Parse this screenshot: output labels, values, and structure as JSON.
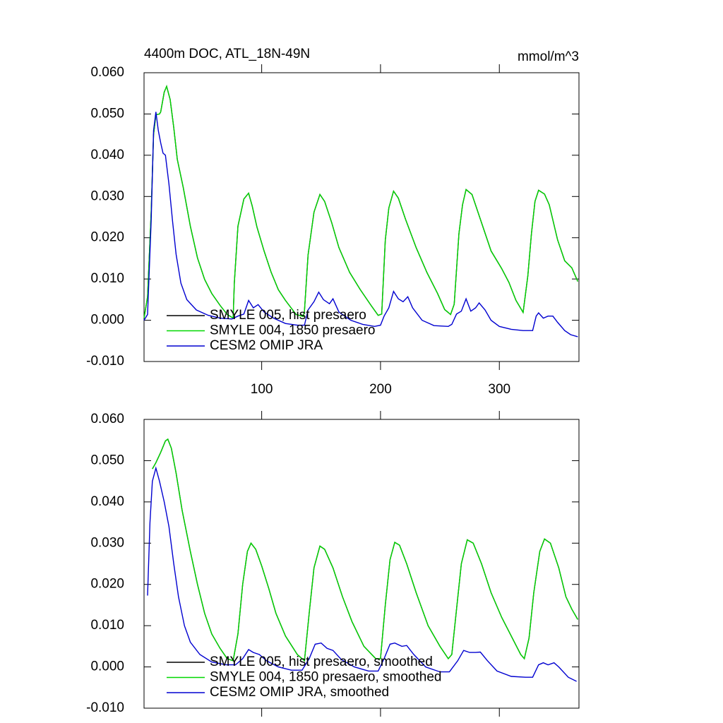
{
  "chart_data": [
    {
      "type": "line",
      "title": "4400m DOC, ATL_18N-49N",
      "units": "mmol/m^3",
      "xlim": [
        1,
        367
      ],
      "xticks": [
        100,
        200,
        300
      ],
      "xtick_labels": true,
      "ylim": [
        -0.01,
        0.06
      ],
      "yticks": [
        {
          "value": -0.01,
          "label": "-0.010"
        },
        {
          "value": 0,
          "label": "0.000"
        },
        {
          "value": 0.01,
          "label": "0.010"
        },
        {
          "value": 0.02,
          "label": "0.020"
        },
        {
          "value": 0.03,
          "label": "0.030"
        },
        {
          "value": 0.04,
          "label": "0.040"
        },
        {
          "value": 0.05,
          "label": "0.050"
        },
        {
          "value": 0.06,
          "label": "0.060"
        }
      ],
      "legend": "lower left",
      "series": [
        {
          "name": "SMYLE 005, hist presaero",
          "color": "#000000",
          "x": [
            1,
            4,
            7,
            9,
            11,
            14,
            15,
            18,
            20,
            23,
            26,
            29,
            34,
            40,
            46,
            52,
            58,
            65,
            71,
            76,
            77,
            80,
            85,
            89,
            92,
            96,
            102,
            108,
            114,
            120,
            129,
            135,
            136,
            139,
            144,
            149,
            153,
            159,
            165,
            174,
            183,
            192,
            198,
            201,
            204,
            207,
            211,
            215,
            221,
            230,
            239,
            248,
            254,
            259,
            262,
            266,
            269,
            272,
            277,
            284,
            293,
            302,
            308,
            314,
            320,
            324,
            327,
            330,
            333,
            338,
            342,
            349,
            355,
            361,
            366
          ],
          "values": [
            0.0005,
            0.0057,
            0.0262,
            0.045,
            0.0498,
            0.05,
            0.0505,
            0.0553,
            0.0567,
            0.0535,
            0.0467,
            0.039,
            0.0322,
            0.0228,
            0.0151,
            0.0099,
            0.0065,
            0.0036,
            0.0014,
            0.0005,
            0.0091,
            0.0228,
            0.0294,
            0.0308,
            0.0277,
            0.0226,
            0.0168,
            0.0116,
            0.0074,
            0.0048,
            0.0014,
            0.0009,
            0.0022,
            0.0158,
            0.0262,
            0.0305,
            0.0288,
            0.0236,
            0.0176,
            0.0116,
            0.0074,
            0.0036,
            0.0012,
            0.0015,
            0.0194,
            0.0272,
            0.0313,
            0.0296,
            0.0245,
            0.0176,
            0.0116,
            0.0065,
            0.0026,
            0.0014,
            0.0039,
            0.021,
            0.028,
            0.0317,
            0.0305,
            0.0245,
            0.0168,
            0.0125,
            0.0092,
            0.0048,
            0.0019,
            0.0108,
            0.021,
            0.0288,
            0.0315,
            0.0306,
            0.028,
            0.0195,
            0.0144,
            0.0127,
            0.0094
          ]
        },
        {
          "name": "SMYLE 004, 1850 presaero",
          "color": "#00d700",
          "x": [
            1,
            4,
            7,
            9,
            11,
            14,
            15,
            18,
            20,
            23,
            26,
            29,
            34,
            40,
            46,
            52,
            58,
            65,
            71,
            76,
            77,
            80,
            85,
            89,
            92,
            96,
            102,
            108,
            114,
            120,
            129,
            135,
            136,
            139,
            144,
            149,
            153,
            159,
            165,
            174,
            183,
            192,
            198,
            201,
            204,
            207,
            211,
            215,
            221,
            230,
            239,
            248,
            254,
            259,
            262,
            266,
            269,
            272,
            277,
            284,
            293,
            302,
            308,
            314,
            320,
            324,
            327,
            330,
            333,
            338,
            342,
            349,
            355,
            361,
            366
          ],
          "values": [
            0.0005,
            0.0057,
            0.0262,
            0.045,
            0.0498,
            0.05,
            0.0505,
            0.0553,
            0.0567,
            0.0535,
            0.0467,
            0.039,
            0.0322,
            0.0228,
            0.0151,
            0.0099,
            0.0065,
            0.0036,
            0.0014,
            0.0005,
            0.0091,
            0.0228,
            0.0294,
            0.0308,
            0.0277,
            0.0226,
            0.0168,
            0.0116,
            0.0074,
            0.0048,
            0.0014,
            0.0009,
            0.0022,
            0.0158,
            0.0262,
            0.0305,
            0.0288,
            0.0236,
            0.0176,
            0.0116,
            0.0074,
            0.0036,
            0.0012,
            0.0015,
            0.0194,
            0.0272,
            0.0313,
            0.0296,
            0.0245,
            0.0176,
            0.0116,
            0.0065,
            0.0026,
            0.0014,
            0.0039,
            0.021,
            0.028,
            0.0317,
            0.0305,
            0.0245,
            0.0168,
            0.0125,
            0.0092,
            0.0048,
            0.0019,
            0.0108,
            0.021,
            0.0288,
            0.0315,
            0.0306,
            0.028,
            0.0195,
            0.0144,
            0.0127,
            0.0094
          ]
        },
        {
          "name": "CESM2 OMIP JRA",
          "color": "#0000d0",
          "x": [
            1,
            4,
            7,
            9,
            11,
            13,
            15,
            17,
            19,
            22,
            25,
            28,
            32,
            37,
            45,
            55,
            65,
            75,
            80,
            85,
            89,
            93,
            97,
            102,
            110,
            120,
            130,
            136,
            139,
            144,
            148,
            152,
            157,
            160,
            165,
            175,
            185,
            195,
            200,
            203,
            207,
            211,
            215,
            219,
            223,
            227,
            235,
            245,
            257,
            260,
            264,
            268,
            272,
            276,
            280,
            283,
            288,
            293,
            300,
            310,
            320,
            328,
            331,
            333,
            337,
            341,
            345,
            349,
            355,
            360,
            366
          ],
          "values": [
            0,
            0.0014,
            0.024,
            0.046,
            0.0505,
            0.046,
            0.043,
            0.0405,
            0.04,
            0.033,
            0.024,
            0.016,
            0.009,
            0.005,
            0.0025,
            0.0012,
            0.0005,
            0.0003,
            0.001,
            0.0015,
            0.0048,
            0.003,
            0.0038,
            0.002,
            0.0005,
            -0.0008,
            -0.0012,
            -0.0012,
            0.0025,
            0.0045,
            0.0068,
            0.005,
            0.004,
            0.0052,
            0.002,
            0,
            -0.001,
            -0.0015,
            -0.0012,
            0.001,
            0.003,
            0.007,
            0.0052,
            0.0045,
            0.0057,
            0.003,
            0,
            -0.0013,
            -0.0015,
            -0.001,
            0.0015,
            0.0022,
            0.0052,
            0.0022,
            0.003,
            0.0042,
            0.0025,
            0,
            -0.0015,
            -0.0022,
            -0.0025,
            -0.0025,
            0.001,
            0.0018,
            0.0005,
            0.001,
            0.001,
            -0.0005,
            -0.0025,
            -0.0035,
            -0.004
          ]
        }
      ]
    },
    {
      "type": "line",
      "xlim": [
        1,
        367
      ],
      "xticks": [
        100,
        200,
        300
      ],
      "xtick_labels": false,
      "ylim": [
        -0.01,
        0.06
      ],
      "yticks": [
        {
          "value": -0.01,
          "label": "-0.010"
        },
        {
          "value": 0,
          "label": "0.000"
        },
        {
          "value": 0.01,
          "label": "0.010"
        },
        {
          "value": 0.02,
          "label": "0.020"
        },
        {
          "value": 0.03,
          "label": "0.030"
        },
        {
          "value": 0.04,
          "label": "0.040"
        },
        {
          "value": 0.05,
          "label": "0.050"
        },
        {
          "value": 0.06,
          "label": "0.060"
        }
      ],
      "legend": "lower left",
      "series": [
        {
          "name": "SMYLE 005, hist presaero, smoothed",
          "color": "#000000",
          "x": [
            8,
            11,
            15,
            19,
            21,
            24,
            28,
            33,
            40,
            46,
            52,
            58,
            65,
            71,
            76,
            80,
            84,
            88,
            91,
            95,
            100,
            106,
            112,
            120,
            130,
            136,
            140,
            144,
            149,
            153,
            160,
            168,
            176,
            186,
            196,
            200,
            204,
            208,
            212,
            216,
            222,
            230,
            240,
            250,
            257,
            260,
            264,
            268,
            273,
            278,
            285,
            293,
            302,
            310,
            318,
            321,
            325,
            329,
            334,
            338,
            343,
            350,
            356,
            361,
            366
          ],
          "values": [
            0.048,
            0.0495,
            0.052,
            0.0548,
            0.0552,
            0.053,
            0.047,
            0.038,
            0.028,
            0.02,
            0.013,
            0.008,
            0.0045,
            0.002,
            0.0015,
            0.008,
            0.02,
            0.028,
            0.03,
            0.0285,
            0.0245,
            0.019,
            0.013,
            0.0075,
            0.003,
            0.0015,
            0.013,
            0.024,
            0.0293,
            0.0285,
            0.024,
            0.017,
            0.011,
            0.005,
            0.002,
            0.002,
            0.015,
            0.026,
            0.0302,
            0.0295,
            0.025,
            0.018,
            0.01,
            0.005,
            0.002,
            0.003,
            0.014,
            0.025,
            0.0308,
            0.03,
            0.025,
            0.018,
            0.012,
            0.0075,
            0.003,
            0.002,
            0.007,
            0.018,
            0.028,
            0.031,
            0.03,
            0.024,
            0.017,
            0.014,
            0.0115
          ]
        },
        {
          "name": "SMYLE 004, 1850 presaero, smoothed",
          "color": "#00d700",
          "x": [
            8,
            11,
            15,
            19,
            21,
            24,
            28,
            33,
            40,
            46,
            52,
            58,
            65,
            71,
            76,
            80,
            84,
            88,
            91,
            95,
            100,
            106,
            112,
            120,
            130,
            136,
            140,
            144,
            149,
            153,
            160,
            168,
            176,
            186,
            196,
            200,
            204,
            208,
            212,
            216,
            222,
            230,
            240,
            250,
            257,
            260,
            264,
            268,
            273,
            278,
            285,
            293,
            302,
            310,
            318,
            321,
            325,
            329,
            334,
            338,
            343,
            350,
            356,
            361,
            366
          ],
          "values": [
            0.048,
            0.0495,
            0.052,
            0.0548,
            0.0552,
            0.053,
            0.047,
            0.038,
            0.028,
            0.02,
            0.013,
            0.008,
            0.0045,
            0.002,
            0.0015,
            0.008,
            0.02,
            0.028,
            0.03,
            0.0285,
            0.0245,
            0.019,
            0.013,
            0.0075,
            0.003,
            0.0015,
            0.013,
            0.024,
            0.0293,
            0.0285,
            0.024,
            0.017,
            0.011,
            0.005,
            0.002,
            0.002,
            0.015,
            0.026,
            0.0302,
            0.0295,
            0.025,
            0.018,
            0.01,
            0.005,
            0.002,
            0.003,
            0.014,
            0.025,
            0.0308,
            0.03,
            0.025,
            0.018,
            0.012,
            0.0075,
            0.003,
            0.002,
            0.007,
            0.018,
            0.028,
            0.031,
            0.03,
            0.024,
            0.017,
            0.014,
            0.0115
          ]
        },
        {
          "name": "CESM2 OMIP JRA, smoothed",
          "color": "#0000d0",
          "x": [
            4,
            6,
            8,
            11,
            14,
            18,
            22,
            26,
            30,
            35,
            40,
            48,
            58,
            70,
            78,
            84,
            89,
            93,
            98,
            104,
            114,
            125,
            134,
            140,
            145,
            150,
            155,
            160,
            167,
            178,
            190,
            198,
            203,
            208,
            212,
            218,
            222,
            228,
            238,
            250,
            258,
            265,
            270,
            275,
            280,
            284,
            290,
            298,
            310,
            322,
            328,
            333,
            337,
            341,
            346,
            350,
            358,
            365
          ],
          "values": [
            0.0173,
            0.035,
            0.045,
            0.0482,
            0.045,
            0.04,
            0.034,
            0.025,
            0.017,
            0.01,
            0.006,
            0.003,
            0.0012,
            0.0005,
            0.0005,
            0.002,
            0.0042,
            0.0035,
            0.003,
            0.0015,
            0,
            -0.0008,
            -0.0008,
            0.002,
            0.0055,
            0.0058,
            0.0045,
            0.004,
            0.0018,
            0,
            -0.001,
            -0.001,
            0.002,
            0.0055,
            0.0058,
            0.005,
            0.0052,
            0.003,
            0,
            -0.0012,
            -0.0012,
            0.0015,
            0.004,
            0.0035,
            0.0035,
            0.0036,
            0.0015,
            -0.001,
            -0.0023,
            -0.0025,
            -0.0025,
            0.0005,
            0.001,
            0.0005,
            0.001,
            0,
            -0.0025,
            -0.0035
          ]
        }
      ]
    }
  ]
}
